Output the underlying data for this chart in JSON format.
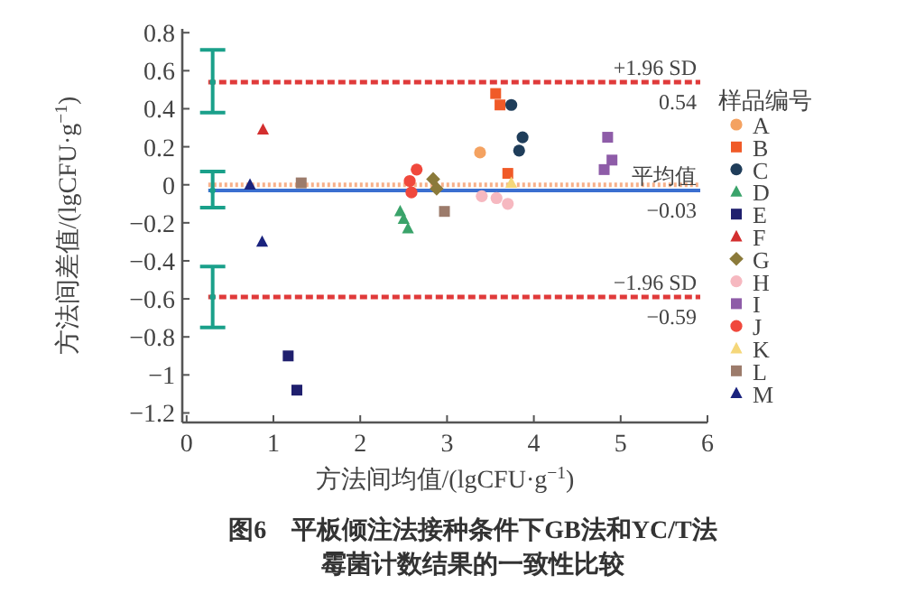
{
  "chart_data": {
    "type": "scatter",
    "xlabel": "方法间均值/(lgCFU·g$^{−1}$)",
    "ylabel": "方法间差值/(lgCFU·g$^{−1}$)",
    "legend_title": "样品编号",
    "xlim": [
      -0.05,
      6
    ],
    "ylim": [
      -1.25,
      0.82
    ],
    "xticks": [
      0,
      1,
      2,
      3,
      4,
      5,
      6
    ],
    "yticks": [
      0.8,
      0.6,
      0.4,
      0.2,
      0,
      -0.2,
      -0.4,
      -0.6,
      -0.8,
      -1.0,
      -1.2
    ],
    "grid": false,
    "legend": "right",
    "ref_lines": [
      {
        "axis": "y",
        "value": 0,
        "color": "#f7b08a",
        "line_style": "dotted"
      },
      {
        "axis": "y",
        "value": 0.54,
        "label": "+1.96 SD",
        "color": "#e03a3a",
        "line_style": "dashed"
      },
      {
        "axis": "y",
        "value": -0.03,
        "label": "平均值",
        "color": "#3b6fd0",
        "line_style": "solid"
      },
      {
        "axis": "y",
        "value": -0.59,
        "label": "−1.96 SD",
        "color": "#e03a3a",
        "line_style": "dashed"
      }
    ],
    "annotations": [
      {
        "text": "0.54",
        "y": 0.54
      },
      {
        "text": "−0.03",
        "y": -0.03
      },
      {
        "text": "−0.59",
        "y": -0.59
      },
      "图6　平板倾注法接种条件下GB法和YC/T法",
      "霉菌计数结果的一致性比较"
    ],
    "series": [
      {
        "color": "#1aa08a",
        "marker": "circle",
        "x": [
          0.3,
          0.3,
          0.3
        ],
        "values": [
          0.54,
          -0.03,
          -0.59
        ],
        "errors": [
          [
            0.38,
            0.71
          ],
          [
            -0.12,
            0.07
          ],
          [
            -0.75,
            -0.43
          ]
        ]
      },
      {
        "name": "A",
        "color": "#f4a261",
        "marker": "circle",
        "x": [
          3.38
        ],
        "values": [
          0.17
        ]
      },
      {
        "name": "B",
        "color": "#f05a28",
        "marker": "square",
        "x": [
          3.56,
          3.61,
          3.7
        ],
        "values": [
          0.48,
          0.42,
          0.06
        ]
      },
      {
        "name": "C",
        "color": "#1f3d5a",
        "marker": "circle",
        "x": [
          3.74,
          3.87,
          3.83
        ],
        "values": [
          0.42,
          0.25,
          0.18
        ]
      },
      {
        "name": "D",
        "color": "#3aa36a",
        "marker": "triangle",
        "x": [
          2.46,
          2.5,
          2.55
        ],
        "values": [
          -0.14,
          -0.18,
          -0.23
        ]
      },
      {
        "name": "E",
        "color": "#1f1f6e",
        "marker": "square",
        "x": [
          1.17,
          1.27
        ],
        "values": [
          -0.9,
          -1.08
        ]
      },
      {
        "name": "F",
        "color": "#d32f2f",
        "marker": "triangle",
        "x": [
          0.88
        ],
        "values": [
          0.29
        ]
      },
      {
        "name": "G",
        "color": "#8b7a3a",
        "marker": "diamond",
        "x": [
          2.84,
          2.88
        ],
        "values": [
          0.03,
          -0.02
        ]
      },
      {
        "name": "H",
        "color": "#f6b8c0",
        "marker": "circle",
        "x": [
          3.4,
          3.57,
          3.7
        ],
        "values": [
          -0.06,
          -0.07,
          -0.1
        ]
      },
      {
        "name": "I",
        "color": "#8e5ca8",
        "marker": "square",
        "x": [
          4.85,
          4.9,
          4.81
        ],
        "values": [
          0.25,
          0.13,
          0.08
        ]
      },
      {
        "name": "J",
        "color": "#f0483c",
        "marker": "circle",
        "x": [
          2.57,
          2.65,
          2.59
        ],
        "values": [
          0.02,
          0.08,
          -0.04
        ]
      },
      {
        "name": "K",
        "color": "#f5d77a",
        "marker": "triangle",
        "x": [
          3.74
        ],
        "values": [
          0.01
        ]
      },
      {
        "name": "L",
        "color": "#9c7b6b",
        "marker": "square",
        "x": [
          2.97,
          1.32
        ],
        "values": [
          -0.14,
          0.01
        ]
      },
      {
        "name": "M",
        "color": "#1a237e",
        "marker": "triangle",
        "x": [
          0.73,
          0.87
        ],
        "values": [
          0.0,
          -0.3
        ]
      }
    ]
  }
}
